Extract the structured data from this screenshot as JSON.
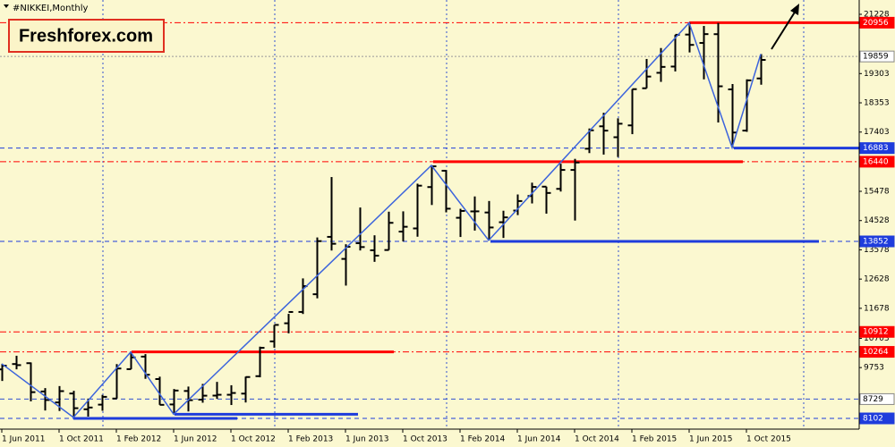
{
  "chart_data": {
    "type": "ohlc",
    "title": "#NIKKEI,Monthly",
    "logo": "Freshforex.com",
    "categories": [
      "1 Jun 2011",
      null,
      null,
      null,
      "1 Oct 2011",
      null,
      null,
      null,
      "1 Feb 2012",
      null,
      null,
      null,
      "1 Jun 2012",
      null,
      null,
      null,
      "1 Oct 2012",
      null,
      null,
      null,
      "1 Feb 2013",
      null,
      null,
      null,
      "1 Jun 2013",
      null,
      null,
      null,
      "1 Oct 2013",
      null,
      null,
      null,
      "1 Feb 2014",
      null,
      null,
      null,
      "1 Jun 2014",
      null,
      null,
      null,
      "1 Oct 2014",
      null,
      null,
      null,
      "1 Feb 2015",
      null,
      null,
      null,
      "1 Jun 2015",
      null,
      null,
      null,
      "1 Oct 2015",
      null
    ],
    "open": [
      9694,
      9868,
      9896,
      8977,
      8621,
      8911,
      8399,
      8549,
      8747,
      9702,
      10109,
      9380,
      8555,
      8993,
      8711,
      8843,
      8870,
      8907,
      9474,
      10604,
      11192,
      11560,
      12135,
      13999,
      13283,
      13793,
      13564,
      13572,
      14170,
      14273,
      15617,
      16147,
      14619,
      14826,
      14791,
      14475,
      14853,
      15326,
      15630,
      15558,
      16173,
      16862,
      17590,
      17235,
      17620,
      18826,
      19328,
      19531,
      20570,
      20298,
      20583,
      18790,
      17451,
      19145
    ],
    "high": [
      9876,
      10137,
      9919,
      9086,
      9152,
      8999,
      8746,
      8866,
      9866,
      10255,
      10190,
      9458,
      9056,
      9136,
      9222,
      9288,
      9179,
      9458,
      10433,
      11137,
      11498,
      12650,
      13980,
      15942,
      13759,
      14953,
      14050,
      14817,
      14828,
      15727,
      16320,
      16164,
      14911,
      15312,
      15164,
      14848,
      15376,
      15759,
      15630,
      16374,
      16533,
      17520,
      18030,
      17850,
      18797,
      19778,
      20133,
      20563,
      20952,
      20850,
      20946,
      18963,
      19115,
      19937
    ],
    "low": [
      9318,
      9696,
      8656,
      8359,
      8343,
      8135,
      8160,
      8349,
      8747,
      9702,
      9388,
      8542,
      8238,
      8328,
      8612,
      8736,
      8537,
      8619,
      9437,
      10398,
      10866,
      11494,
      12003,
      13555,
      12416,
      13557,
      13188,
      13572,
      13853,
      14004,
      15034,
      14795,
      13995,
      14203,
      13885,
      13964,
      14706,
      15085,
      14753,
      15471,
      14529,
      16720,
      16672,
      16592,
      17335,
      18827,
      19034,
      19373,
      19990,
      19116,
      17714,
      16901,
      17411,
      18941
    ],
    "close": [
      9816,
      9833,
      8955,
      8700,
      8988,
      8434,
      8455,
      8802,
      9723,
      10083,
      9521,
      8543,
      9007,
      8695,
      8840,
      8870,
      8928,
      9446,
      10395,
      11139,
      11559,
      12398,
      13861,
      13775,
      13677,
      13668,
      13389,
      14455,
      14327,
      15662,
      16291,
      14914,
      14841,
      14828,
      14304,
      14632,
      15162,
      15621,
      15425,
      16173,
      16414,
      17460,
      17450,
      17674,
      18797,
      19206,
      19520,
      20563,
      20235,
      20585,
      18890,
      17388,
      19083,
      19747
    ],
    "color": "#000000",
    "zigzag": {
      "color": "#3c64dc",
      "at": [
        0,
        5,
        9,
        12,
        30,
        34,
        48,
        51,
        53
      ],
      "values": [
        9876,
        8135,
        10255,
        8238,
        16320,
        13885,
        20952,
        16901,
        19937
      ]
    },
    "ylim": [
      7812,
      21693
    ],
    "yticks": [
      21228,
      19303,
      18353,
      17403,
      15478,
      14528,
      13578,
      12628,
      11678,
      10703,
      9753
    ],
    "levels": [
      {
        "value": 20956,
        "color": "#ff0000",
        "box": true
      },
      {
        "value": 19859,
        "color": "#ffffff",
        "box": true
      },
      {
        "value": 16883,
        "color": "#1e3cdc",
        "box": true
      },
      {
        "value": 16440,
        "color": "#ff0000",
        "box": true
      },
      {
        "value": 13852,
        "color": "#1e3cdc",
        "box": true
      },
      {
        "value": 10912,
        "color": "#ff0000",
        "box": true
      },
      {
        "value": 10264,
        "color": "#ff0000",
        "box": true
      },
      {
        "value": 8729,
        "color": "#ffffff",
        "box": true
      },
      {
        "value": 8102,
        "color": "#1e3cdc",
        "box": true
      },
      {
        "value": 8238,
        "color": "#1e3cdc",
        "box": false
      }
    ]
  }
}
